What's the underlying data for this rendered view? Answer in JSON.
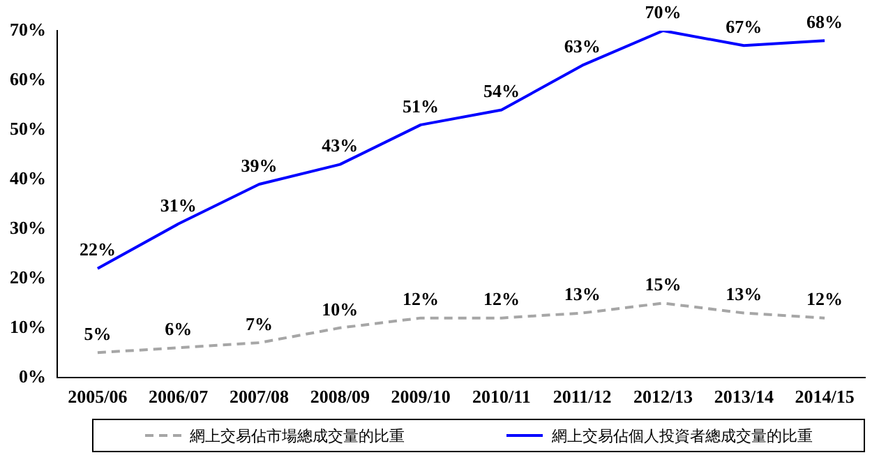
{
  "chart_data": {
    "type": "line",
    "categories": [
      "2005/06",
      "2006/07",
      "2007/08",
      "2008/09",
      "2009/10",
      "2010/11",
      "2011/12",
      "2012/13",
      "2013/14",
      "2014/15"
    ],
    "series": [
      {
        "name": "網上交易佔市場總成交量的比重",
        "color": "#a6a6a6",
        "line_style": "dashed",
        "values": [
          5,
          6,
          7,
          10,
          12,
          12,
          13,
          15,
          13,
          12
        ],
        "value_labels": [
          "5%",
          "6%",
          "7%",
          "10%",
          "12%",
          "12%",
          "13%",
          "15%",
          "13%",
          "12%"
        ]
      },
      {
        "name": "網上交易佔個人投資者總成交量的比重",
        "color": "#0000ff",
        "line_style": "solid",
        "values": [
          22,
          31,
          39,
          43,
          51,
          54,
          63,
          70,
          67,
          68
        ],
        "value_labels": [
          "22%",
          "31%",
          "39%",
          "43%",
          "51%",
          "54%",
          "63%",
          "70%",
          "67%",
          "68%"
        ]
      }
    ],
    "ylim": [
      0,
      70
    ],
    "yticks": [
      {
        "value": 0,
        "label": "0%"
      },
      {
        "value": 10,
        "label": "10%"
      },
      {
        "value": 20,
        "label": "20%"
      },
      {
        "value": 30,
        "label": "30%"
      },
      {
        "value": 40,
        "label": "40%"
      },
      {
        "value": 50,
        "label": "50%"
      },
      {
        "value": 60,
        "label": "60%"
      },
      {
        "value": 70,
        "label": "70%"
      }
    ],
    "grid": false,
    "legend": "bottom",
    "marker": "none"
  }
}
